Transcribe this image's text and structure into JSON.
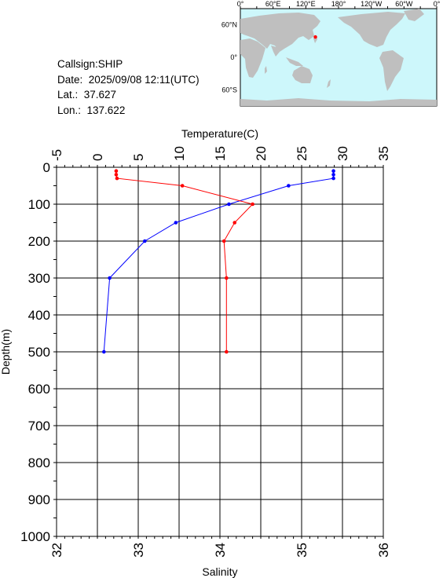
{
  "station": {
    "callsign": "Callsign:SHIP",
    "date": "Date:  2025/09/08 12:11(UTC)",
    "lat": "Lat.:  37.627",
    "lon": "Lon.:  137.622"
  },
  "map": {
    "lon_labels": [
      "0°",
      "60°E",
      "120°E",
      "180°",
      "120°W",
      "60°W",
      "0°"
    ],
    "lat_labels": [
      "60°N",
      "0°",
      "60°S"
    ],
    "ocean_color": "#cdf7fb",
    "land_color": "#bfbfbf",
    "marker_color": "#ff0000",
    "station_lat": 37.627,
    "station_lon": 137.622
  },
  "chart_data": {
    "type": "line",
    "y_axis": {
      "label": "Depth(m)",
      "range": [
        0,
        1000
      ],
      "reversed": true,
      "ticks": [
        0,
        100,
        200,
        300,
        400,
        500,
        600,
        700,
        800,
        900,
        1000
      ]
    },
    "x_top": {
      "label": "Temperature(C)",
      "range": [
        -5,
        35
      ],
      "ticks": [
        -5,
        0,
        5,
        10,
        15,
        20,
        25,
        30,
        35
      ]
    },
    "x_bottom": {
      "label": "Salinity",
      "range": [
        32,
        36
      ],
      "ticks": [
        32,
        33,
        34,
        35,
        36
      ]
    },
    "grid": true,
    "series": [
      {
        "color": "#0000ff",
        "axis": "top",
        "points": [
          [
            28.9,
            10
          ],
          [
            28.9,
            20
          ],
          [
            28.9,
            30
          ],
          [
            23.4,
            50
          ],
          [
            16.1,
            100
          ],
          [
            9.6,
            150
          ],
          [
            5.8,
            200
          ],
          [
            1.5,
            300
          ],
          [
            0.8,
            500
          ]
        ]
      },
      {
        "color": "#ff0000",
        "axis": "bottom",
        "points": [
          [
            32.73,
            10
          ],
          [
            32.73,
            20
          ],
          [
            32.74,
            30
          ],
          [
            33.54,
            50
          ],
          [
            34.4,
            100
          ],
          [
            34.18,
            150
          ],
          [
            34.05,
            200
          ],
          [
            34.08,
            300
          ],
          [
            34.08,
            500
          ]
        ]
      }
    ]
  }
}
